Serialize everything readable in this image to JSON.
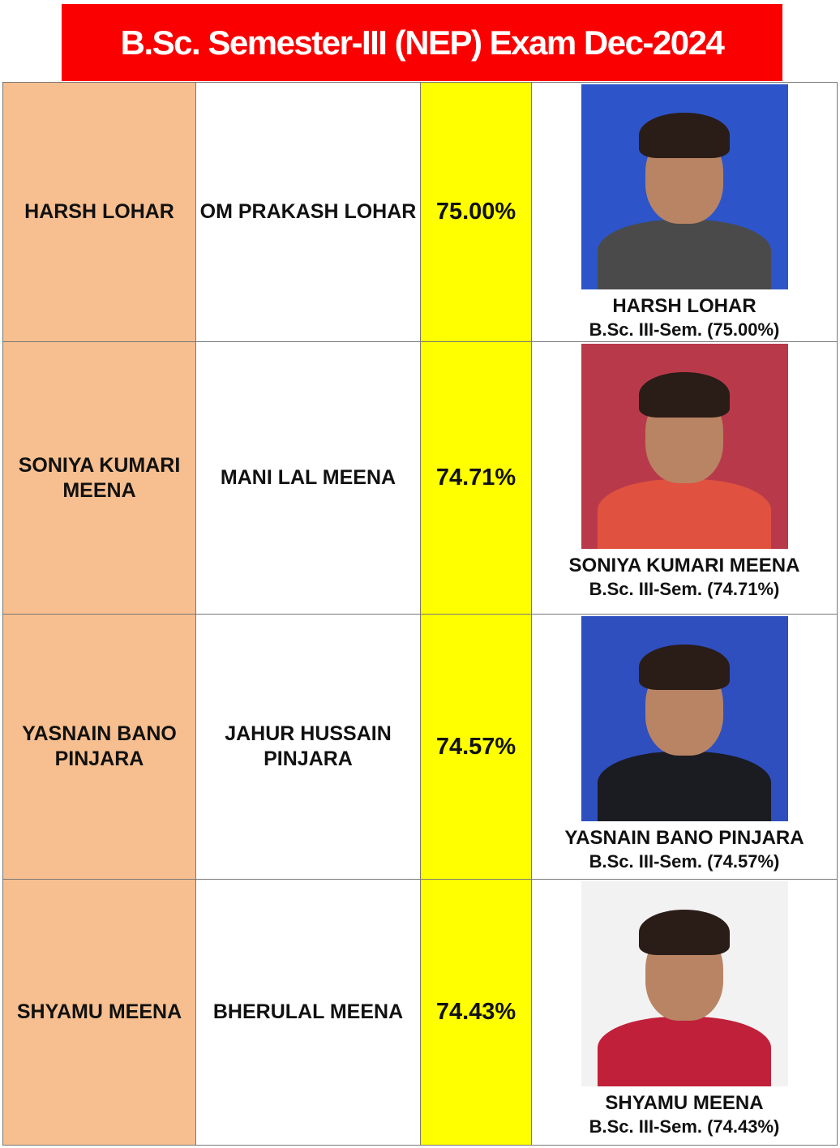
{
  "title": "B.Sc. Semester-III (NEP) Exam Dec-2024",
  "colors": {
    "title_bg": "#fb0000",
    "name_col": "#f7bf8f",
    "percent_col": "#ffff00"
  },
  "students": [
    {
      "name": "HARSH LOHAR",
      "father": "OM PRAKASH LOHAR",
      "percent": "75.00%",
      "photo_name": "HARSH LOHAR",
      "caption": "B.Sc. III-Sem. (75.00%)",
      "photo_bg": "#2d55c9",
      "photo_body": "#4a4a4a",
      "row_h": 320
    },
    {
      "name": "SONIYA KUMARI MEENA",
      "father": "MANI LAL MEENA",
      "percent": "74.71%",
      "photo_name": "SONIYA KUMARI MEENA",
      "caption": "B.Sc. III-Sem. (74.71%)",
      "photo_bg": "#b83a4a",
      "photo_body": "#e0523f",
      "row_h": 336
    },
    {
      "name": "YASNAIN BANO PINJARA",
      "father": "JAHUR HUSSAIN PINJARA",
      "percent": "74.57%",
      "photo_name": "YASNAIN BANO PINJARA",
      "caption": "B.Sc. III-Sem. (74.57%)",
      "photo_bg": "#2f4fbf",
      "photo_body": "#1b1b22",
      "row_h": 327
    },
    {
      "name": "SHYAMU MEENA",
      "father": "BHERULAL MEENA",
      "percent": "74.43%",
      "photo_name": "SHYAMU MEENA",
      "caption": "B.Sc. III-Sem. (74.43%)",
      "photo_bg": "#f2f2f2",
      "photo_body": "#c0203a",
      "row_h": 328
    }
  ]
}
